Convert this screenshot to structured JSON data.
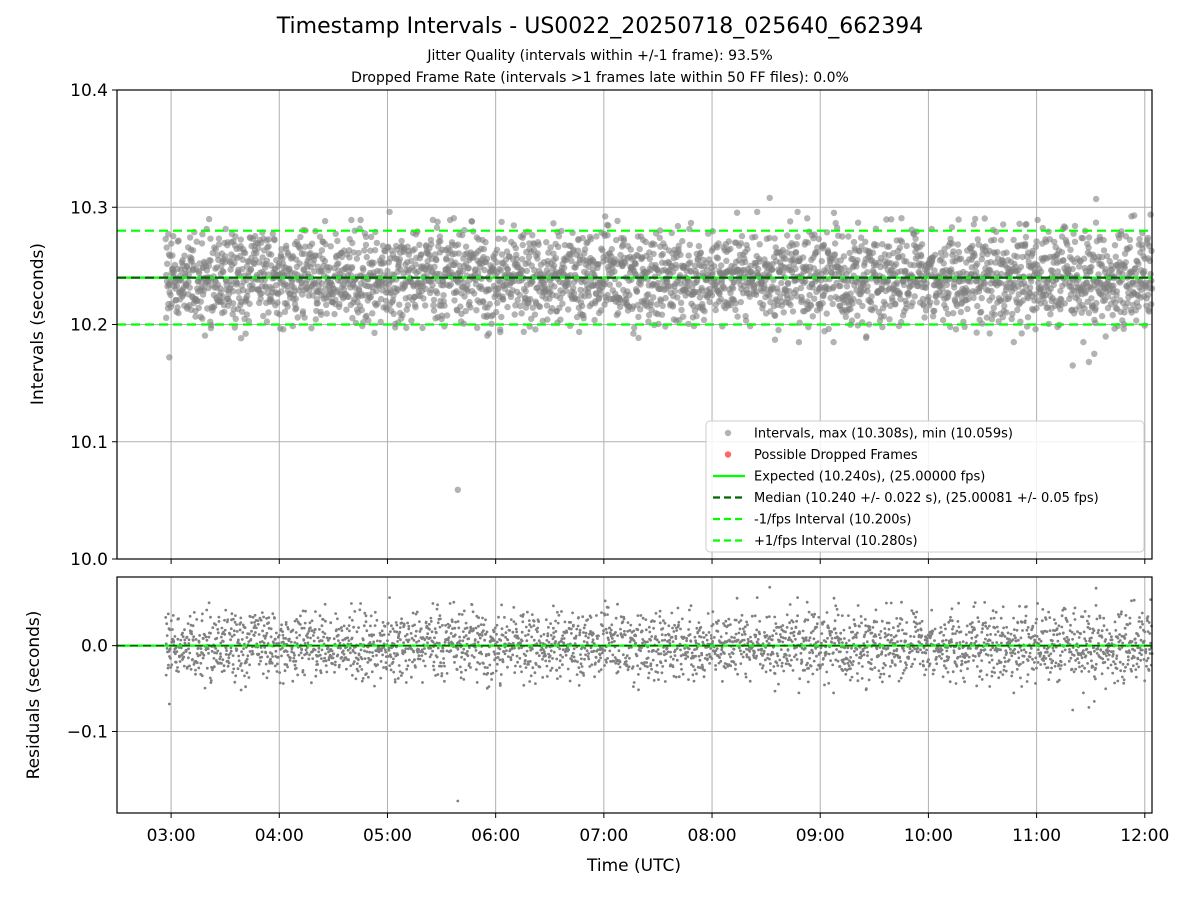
{
  "header": {
    "title": "Timestamp Intervals - US0022_20250718_025640_662394",
    "subtitle_jitter": "Jitter Quality (intervals within +/-1 frame): 93.5%",
    "subtitle_dropped": "Dropped Frame Rate (intervals >1 frames late within 50 FF files): 0.0%"
  },
  "colors": {
    "points": "#808080",
    "dropped": "#ff0000",
    "expected": "#00ff00",
    "median": "#006400",
    "bounds": "#00ff00",
    "grid": "#b0b0b0"
  },
  "chart_data": [
    {
      "type": "scatter",
      "panel": "top",
      "xlabel": "",
      "ylabel": "Intervals (seconds)",
      "x_unit": "hours UTC",
      "xlim": [
        "02:30",
        "12:04"
      ],
      "ylim": [
        10.0,
        10.4
      ],
      "yticks": [
        10.0,
        10.1,
        10.2,
        10.3,
        10.4
      ],
      "ytick_labels": [
        "10.0",
        "10.1",
        "10.2",
        "10.3",
        "10.4"
      ],
      "grid": true,
      "legend_position": "lower-right",
      "legend": [
        {
          "label": "Intervals, max (10.308s), min (10.059s)",
          "style": "marker",
          "color": "#808080"
        },
        {
          "label": "Possible Dropped Frames",
          "style": "marker",
          "color": "#ff0000"
        },
        {
          "label": "Expected (10.240s), (25.00000 fps)",
          "style": "solid",
          "color": "#00ff00"
        },
        {
          "label": "Median (10.240 +/- 0.022 s), (25.00081 +/- 0.05 fps)",
          "style": "dashed",
          "color": "#006400"
        },
        {
          "label": "-1/fps Interval (10.200s)",
          "style": "dashed",
          "color": "#00ff00"
        },
        {
          "label": "+1/fps Interval (10.280s)",
          "style": "dashed",
          "color": "#00ff00"
        }
      ],
      "reference_lines": [
        {
          "name": "Expected",
          "y": 10.24,
          "style": "solid"
        },
        {
          "name": "Median",
          "y": 10.24,
          "style": "dashed"
        },
        {
          "name": "-1/fps",
          "y": 10.2,
          "style": "dashed"
        },
        {
          "name": "+1/fps",
          "y": 10.28,
          "style": "dashed"
        }
      ],
      "series": [
        {
          "name": "Intervals",
          "start": "02:57",
          "end": "12:04",
          "count": 3200,
          "center": 10.24,
          "spread": 0.022,
          "max": 10.308,
          "min": 10.059,
          "notable_points": [
            {
              "x": "02:59",
              "y": 10.172
            },
            {
              "x": "05:39",
              "y": 10.059
            },
            {
              "x": "08:32",
              "y": 10.308
            },
            {
              "x": "11:33",
              "y": 10.307
            },
            {
              "x": "11:20",
              "y": 10.165
            },
            {
              "x": "11:29",
              "y": 10.168
            },
            {
              "x": "11:32",
              "y": 10.175
            }
          ]
        }
      ]
    },
    {
      "type": "scatter",
      "panel": "bottom",
      "xlabel": "Time (UTC)",
      "ylabel": "Residuals (seconds)",
      "xlim": [
        "02:30",
        "12:04"
      ],
      "ylim": [
        -0.195,
        0.08
      ],
      "xticks": [
        "03:00",
        "04:00",
        "05:00",
        "06:00",
        "07:00",
        "08:00",
        "09:00",
        "10:00",
        "11:00",
        "12:00"
      ],
      "yticks": [
        0.0,
        -0.1
      ],
      "ytick_labels": [
        "0.0",
        "−0.1"
      ],
      "grid": true,
      "reference_lines": [
        {
          "name": "zero",
          "y": 0.0,
          "style": "solid"
        }
      ],
      "series": [
        {
          "name": "Residuals",
          "derived_from": "Intervals",
          "offset": 10.24
        }
      ]
    }
  ]
}
